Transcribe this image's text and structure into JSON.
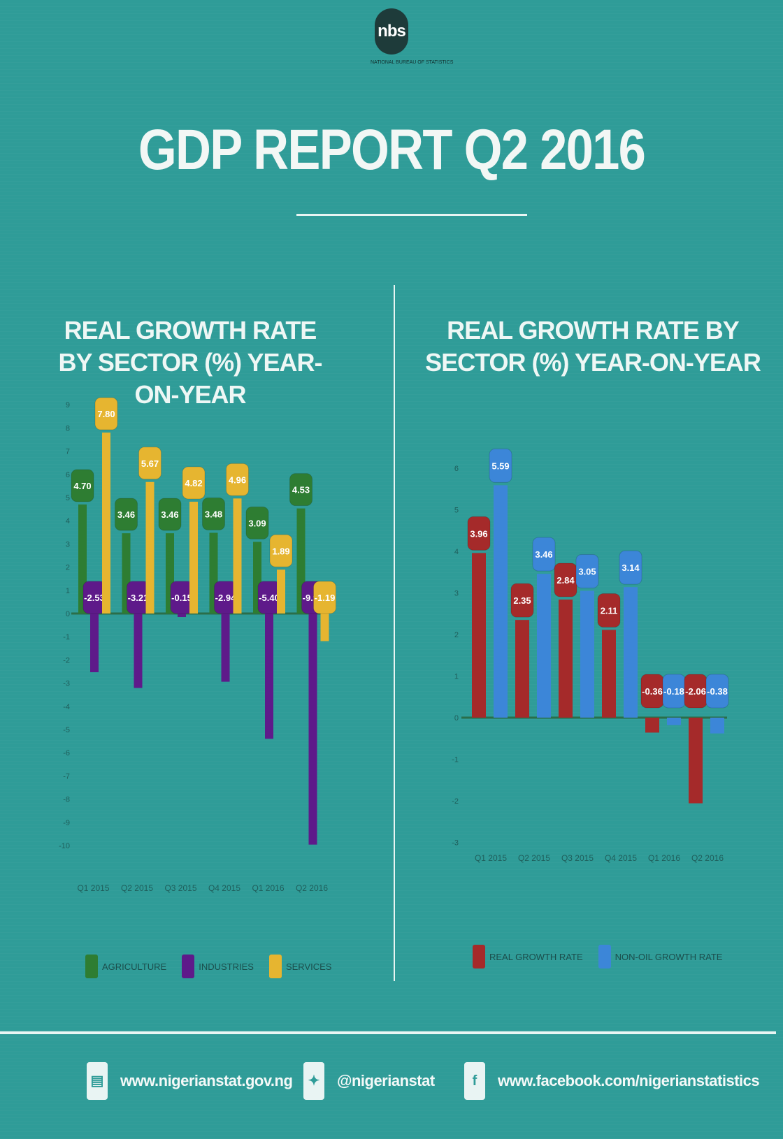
{
  "logo": {
    "mark": "nbs",
    "tagline": "NATIONAL BUREAU OF STATISTICS"
  },
  "header": {
    "title": "GDP REPORT Q2 2016"
  },
  "colors": {
    "background": "#2f9c98",
    "agriculture": "#2e7d32",
    "industries": "#5e1a8a",
    "services": "#e6b530",
    "real_growth": "#a52a2a",
    "non_oil_growth": "#3c86d8"
  },
  "chart_data": [
    {
      "type": "bar",
      "title": "REAL GROWTH RATE BY SECTOR (%) YEAR-ON-YEAR",
      "categories": [
        "Q1 2015",
        "Q2 2015",
        "Q3 2015",
        "Q4 2015",
        "Q1 2016",
        "Q2 2016"
      ],
      "series": [
        {
          "name": "AGRICULTURE",
          "values": [
            4.7,
            3.46,
            3.46,
            3.48,
            3.09,
            4.53
          ],
          "labels": [
            "4.70",
            "3.46",
            "3.46",
            "3.48",
            "3.09",
            "4.53"
          ]
        },
        {
          "name": "INDUSTRIES",
          "values": [
            -2.53,
            -3.21,
            -0.15,
            -2.94,
            -5.4,
            -9.96
          ],
          "labels": [
            "-2.53",
            "-3.21",
            "-0.15",
            "-2.94",
            "-5.40",
            "-9.96"
          ]
        },
        {
          "name": "SERVICES",
          "values": [
            7.8,
            5.67,
            4.82,
            4.96,
            1.89,
            -1.19
          ],
          "labels": [
            "7.80",
            "5.67",
            "4.82",
            "4.96",
            "1.89",
            "-1.19"
          ]
        }
      ],
      "yticks": [
        -10,
        -9,
        -8,
        -7,
        -6,
        -5,
        -4,
        -3,
        -2,
        -1,
        0,
        1,
        2,
        3,
        4,
        5,
        6,
        7,
        8,
        9
      ],
      "ylim": [
        -10,
        9
      ],
      "legend_position": "bottom"
    },
    {
      "type": "bar",
      "title": "REAL GROWTH RATE BY SECTOR (%) YEAR-ON-YEAR",
      "categories": [
        "Q1 2015",
        "Q2 2015",
        "Q3 2015",
        "Q4 2015",
        "Q1 2016",
        "Q2 2016"
      ],
      "series": [
        {
          "name": "REAL GROWTH RATE",
          "values": [
            3.96,
            2.35,
            2.84,
            2.11,
            -0.36,
            -2.06
          ],
          "labels": [
            "3.96",
            "2.35",
            "2.84",
            "2.11",
            "-0.36",
            "-2.06"
          ]
        },
        {
          "name": "NON-OIL GROWTH RATE",
          "values": [
            5.59,
            3.46,
            3.05,
            3.14,
            -0.18,
            -0.38
          ],
          "labels": [
            "5.59",
            "3.46",
            "3.05",
            "3.14",
            "-0.18",
            "-0.38"
          ]
        }
      ],
      "yticks": [
        -3,
        -2,
        -1,
        0,
        1,
        2,
        3,
        4,
        5,
        6
      ],
      "ylim": [
        -3,
        6
      ],
      "legend_position": "bottom"
    }
  ],
  "footer": {
    "website_icon": "globe-icon",
    "website": "www.nigerianstat.gov.ng",
    "twitter_icon": "twitter-icon",
    "twitter": "@nigerianstat",
    "facebook_icon": "facebook-icon",
    "facebook": "www.facebook.com/nigerianstatistics"
  }
}
